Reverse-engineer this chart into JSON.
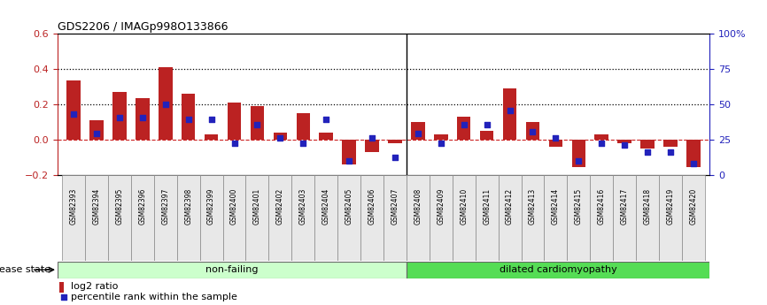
{
  "title": "GDS2206 / IMAGp998O133866",
  "samples": [
    "GSM82393",
    "GSM82394",
    "GSM82395",
    "GSM82396",
    "GSM82397",
    "GSM82398",
    "GSM82399",
    "GSM82400",
    "GSM82401",
    "GSM82402",
    "GSM82403",
    "GSM82404",
    "GSM82405",
    "GSM82406",
    "GSM82407",
    "GSM82408",
    "GSM82409",
    "GSM82410",
    "GSM82411",
    "GSM82412",
    "GSM82413",
    "GSM82414",
    "GSM82415",
    "GSM82416",
    "GSM82417",
    "GSM82418",
    "GSM82419",
    "GSM82420"
  ],
  "log2_ratio": [
    0.335,
    0.11,
    0.27,
    0.235,
    0.41,
    0.26,
    0.03,
    0.21,
    0.19,
    0.04,
    0.15,
    0.04,
    -0.14,
    -0.07,
    -0.02,
    0.1,
    0.03,
    0.13,
    0.05,
    0.29,
    0.1,
    -0.04,
    -0.155,
    0.03,
    -0.02,
    -0.05,
    -0.04,
    -0.155
  ],
  "percentile": [
    0.435,
    0.295,
    0.405,
    0.405,
    0.5,
    0.395,
    0.395,
    0.225,
    0.355,
    0.265,
    0.225,
    0.395,
    0.105,
    0.265,
    0.13,
    0.295,
    0.225,
    0.355,
    0.355,
    0.455,
    0.305,
    0.265,
    0.105,
    0.225,
    0.215,
    0.165,
    0.165,
    0.085
  ],
  "non_failing_count": 15,
  "ylim_left": [
    -0.2,
    0.6
  ],
  "yticks_left": [
    -0.2,
    0.0,
    0.2,
    0.4,
    0.6
  ],
  "ytick_labels_right": [
    "0",
    "25",
    "50",
    "75",
    "100%"
  ],
  "bar_color": "#bb2222",
  "scatter_color": "#2222bb",
  "zero_line_color": "#cc2222",
  "dotted_line_color": "#000000",
  "non_failing_color": "#ccffcc",
  "dilated_color": "#55dd55",
  "non_failing_label": "non-failing",
  "dilated_label": "dilated cardiomyopathy",
  "disease_state_label": "disease state",
  "legend_log2": "log2 ratio",
  "legend_percentile": "percentile rank within the sample"
}
